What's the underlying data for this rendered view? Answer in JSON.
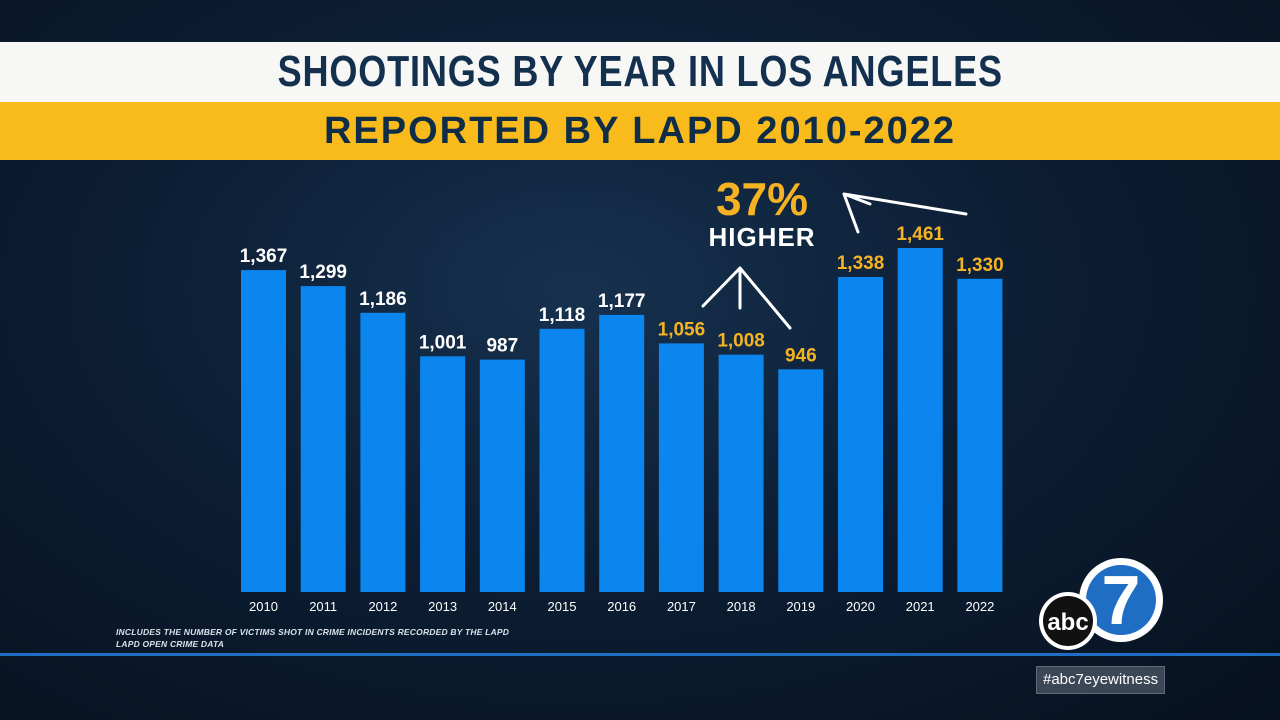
{
  "title": "SHOOTINGS BY YEAR IN LOS ANGELES",
  "subtitle": "REPORTED BY LAPD 2010-2022",
  "chart_data": {
    "type": "bar",
    "title": "SHOOTINGS BY YEAR IN LOS ANGELES",
    "subtitle": "REPORTED BY LAPD 2010-2022",
    "categories": [
      "2010",
      "2011",
      "2012",
      "2013",
      "2014",
      "2015",
      "2016",
      "2017",
      "2018",
      "2019",
      "2020",
      "2021",
      "2022"
    ],
    "values": [
      1367,
      1299,
      1186,
      1001,
      987,
      1118,
      1177,
      1056,
      1008,
      946,
      1338,
      1461,
      1330
    ],
    "value_labels": [
      "1,367",
      "1,299",
      "1,186",
      "1,001",
      "987",
      "1,118",
      "1,177",
      "1,056",
      "1,008",
      "946",
      "1,338",
      "1,461",
      "1,330"
    ],
    "highlighted_label_years": [
      "2017",
      "2018",
      "2019",
      "2020",
      "2021",
      "2022"
    ],
    "xlabel": "",
    "ylabel": "",
    "ylim": [
      0,
      1461
    ],
    "grid": false,
    "colors": {
      "bar": "#0a86ee",
      "label_default": "#ffffff",
      "label_highlight": "#f5b324",
      "tick_label": "#ffffff"
    },
    "annotation": {
      "value": "37%",
      "text": "HIGHER"
    }
  },
  "footnote": {
    "line1": "INCLUDES THE NUMBER OF VICTIMS SHOT IN CRIME INCIDENTS RECORDED BY THE LAPD",
    "line2": "LAPD OPEN CRIME DATA"
  },
  "logo": {
    "text": "abc",
    "number": "7"
  },
  "hashtag": "#abc7eyewitness",
  "colors": {
    "title_bar": "#f7f7f5",
    "title_text": "#14304f",
    "subtitle_bar": "#f9bb1c",
    "subtitle_text": "#0f2d47",
    "background": "#0c1e34",
    "separator": "#1e6fc4"
  }
}
